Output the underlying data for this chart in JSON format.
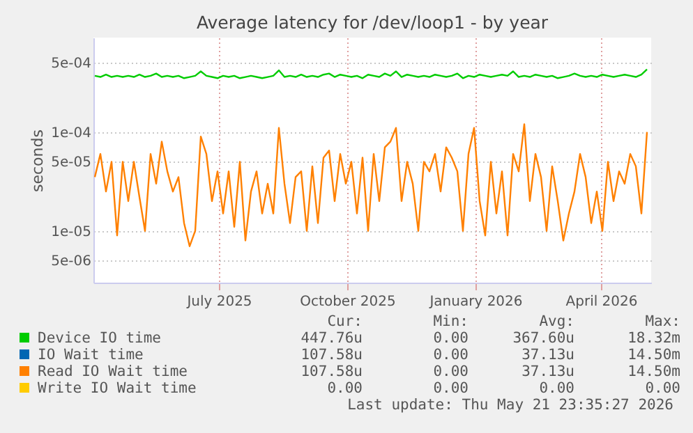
{
  "chart_data": {
    "type": "line",
    "title": "Average latency for /dev/loop1 - by year",
    "ylabel": "seconds",
    "log": "y",
    "grid": true,
    "legend": "bottom",
    "x": [
      "2025-04-18",
      "2025-04-22",
      "2025-04-26",
      "2025-04-30",
      "2025-05-04",
      "2025-05-08",
      "2025-05-12",
      "2025-05-16",
      "2025-05-20",
      "2025-05-24",
      "2025-05-28",
      "2025-06-01",
      "2025-06-05",
      "2025-06-09",
      "2025-06-13",
      "2025-06-17",
      "2025-06-21",
      "2025-06-25",
      "2025-06-29",
      "2025-07-03",
      "2025-07-07",
      "2025-07-11",
      "2025-07-15",
      "2025-07-19",
      "2025-07-23",
      "2025-07-27",
      "2025-07-31",
      "2025-08-04",
      "2025-08-08",
      "2025-08-12",
      "2025-08-16",
      "2025-08-20",
      "2025-08-24",
      "2025-08-28",
      "2025-09-01",
      "2025-09-05",
      "2025-09-09",
      "2025-09-13",
      "2025-09-17",
      "2025-09-21",
      "2025-09-25",
      "2025-09-29",
      "2025-10-03",
      "2025-10-07",
      "2025-10-11",
      "2025-10-15",
      "2025-10-19",
      "2025-10-23",
      "2025-10-27",
      "2025-10-31",
      "2025-11-04",
      "2025-11-08",
      "2025-11-12",
      "2025-11-16",
      "2025-11-20",
      "2025-11-24",
      "2025-11-28",
      "2025-12-02",
      "2025-12-06",
      "2025-12-10",
      "2025-12-14",
      "2025-12-18",
      "2025-12-22",
      "2025-12-26",
      "2025-12-30",
      "2026-01-03",
      "2026-01-07",
      "2026-01-11",
      "2026-01-15",
      "2026-01-19",
      "2026-01-23",
      "2026-01-27",
      "2026-01-31",
      "2026-02-04",
      "2026-02-08",
      "2026-02-12",
      "2026-02-16",
      "2026-02-20",
      "2026-02-24",
      "2026-02-28",
      "2026-03-04",
      "2026-03-08",
      "2026-03-12",
      "2026-03-16",
      "2026-03-20",
      "2026-03-24",
      "2026-03-28",
      "2026-04-01",
      "2026-04-05",
      "2026-04-09",
      "2026-04-13",
      "2026-04-17",
      "2026-04-21",
      "2026-04-25",
      "2026-04-29",
      "2026-05-03",
      "2026-05-07",
      "2026-05-11",
      "2026-05-15",
      "2026-05-19"
    ],
    "xlim": [
      "2025-04-17",
      "2026-05-22"
    ],
    "xticks": [
      {
        "value": "2025-07-16",
        "label": "July 2025"
      },
      {
        "value": "2025-10-16",
        "label": "October 2025"
      },
      {
        "value": "2026-01-16",
        "label": "January 2026"
      },
      {
        "value": "2026-04-16",
        "label": "April 2026"
      }
    ],
    "ylim": [
      3e-06,
      0.0009
    ],
    "yticks": [
      {
        "value": 5e-06,
        "label": "5e-06"
      },
      {
        "value": 1e-05,
        "label": "1e-05"
      },
      {
        "value": 5e-05,
        "label": "5e-05"
      },
      {
        "value": 0.0001,
        "label": "1e-04"
      },
      {
        "value": 0.0005,
        "label": "5e-04"
      }
    ],
    "series": [
      {
        "name": "Device IO time",
        "color": "#00cc00",
        "values": [
          0.00037,
          0.00036,
          0.00038,
          0.00036,
          0.00037,
          0.00036,
          0.00037,
          0.00036,
          0.00038,
          0.00036,
          0.00037,
          0.00039,
          0.00036,
          0.00037,
          0.00036,
          0.00037,
          0.00035,
          0.00036,
          0.00037,
          0.00041,
          0.00037,
          0.00036,
          0.00035,
          0.00037,
          0.00036,
          0.00037,
          0.00035,
          0.00036,
          0.00037,
          0.00036,
          0.00035,
          0.00036,
          0.00037,
          0.00042,
          0.00036,
          0.00037,
          0.00036,
          0.00038,
          0.00036,
          0.00037,
          0.00036,
          0.00038,
          0.00039,
          0.00036,
          0.00038,
          0.00037,
          0.00036,
          0.00037,
          0.00035,
          0.00038,
          0.00037,
          0.00036,
          0.00039,
          0.00037,
          0.00041,
          0.00036,
          0.00038,
          0.00037,
          0.00036,
          0.00037,
          0.00036,
          0.00038,
          0.00037,
          0.00036,
          0.00037,
          0.00039,
          0.00035,
          0.00037,
          0.00036,
          0.00038,
          0.00037,
          0.00036,
          0.00037,
          0.00038,
          0.00037,
          0.00041,
          0.00036,
          0.00037,
          0.00036,
          0.00038,
          0.00037,
          0.00036,
          0.00037,
          0.00035,
          0.00036,
          0.00037,
          0.00039,
          0.00037,
          0.00036,
          0.00037,
          0.00036,
          0.00038,
          0.00037,
          0.00036,
          0.00037,
          0.00038,
          0.00037,
          0.00036,
          0.00038,
          0.00043
        ]
      },
      {
        "name": "IO Wait time",
        "color": "#0066b3",
        "values": [
          null,
          null,
          null,
          null,
          null,
          null,
          null,
          null,
          null,
          null,
          null,
          null,
          null,
          null,
          null,
          null,
          null,
          null,
          null,
          null,
          null,
          null,
          null,
          null,
          null,
          null,
          null,
          null,
          null,
          null,
          null,
          null,
          null,
          null,
          null,
          null,
          null,
          null,
          null,
          null,
          null,
          null,
          null,
          null,
          null,
          null,
          null,
          null,
          null,
          null,
          null,
          null,
          null,
          null,
          null,
          null,
          null,
          null,
          null,
          null,
          null,
          null,
          null,
          null,
          null,
          null,
          null,
          null,
          null,
          null,
          null,
          null,
          null,
          null,
          null,
          null,
          null,
          null,
          null,
          null,
          null,
          null,
          null,
          null,
          null,
          null,
          null,
          null,
          null,
          null,
          null,
          null,
          null,
          null,
          null,
          null,
          null,
          null,
          null,
          null
        ]
      },
      {
        "name": "Read IO Wait time",
        "color": "#ff8000",
        "values": [
          3.5e-05,
          6e-05,
          2.5e-05,
          5e-05,
          9e-06,
          5e-05,
          2e-05,
          5e-05,
          2.2e-05,
          1e-05,
          6e-05,
          3e-05,
          8e-05,
          4e-05,
          2.5e-05,
          3.5e-05,
          1.2e-05,
          7e-06,
          1e-05,
          9e-05,
          6e-05,
          2e-05,
          4e-05,
          1.5e-05,
          4e-05,
          1.1e-05,
          5e-05,
          8e-06,
          2.5e-05,
          4e-05,
          1.5e-05,
          3e-05,
          1.5e-05,
          0.00011,
          3e-05,
          1.2e-05,
          3.5e-05,
          4e-05,
          1e-05,
          4.5e-05,
          1.2e-05,
          5.5e-05,
          6.5e-05,
          2e-05,
          6e-05,
          3e-05,
          5e-05,
          1.5e-05,
          5.5e-05,
          1e-05,
          6e-05,
          2e-05,
          7e-05,
          8e-05,
          0.00011,
          2e-05,
          5e-05,
          3e-05,
          1e-05,
          5e-05,
          4e-05,
          6e-05,
          2.5e-05,
          7e-05,
          5.5e-05,
          4e-05,
          1e-05,
          6e-05,
          0.00011,
          2e-05,
          9e-06,
          5e-05,
          1.5e-05,
          4e-05,
          9e-06,
          6e-05,
          4e-05,
          0.00012,
          2e-05,
          6e-05,
          3.5e-05,
          1e-05,
          4.5e-05,
          2e-05,
          8e-06,
          1.5e-05,
          2.5e-05,
          6e-05,
          3.5e-05,
          1.2e-05,
          2.5e-05,
          1e-05,
          5e-05,
          2e-05,
          4e-05,
          3e-05,
          6e-05,
          4.5e-05,
          1.5e-05,
          0.0001
        ]
      },
      {
        "name": "Write IO Wait time",
        "color": "#ffcc00",
        "values": [
          null,
          null,
          null,
          null,
          null,
          null,
          null,
          null,
          null,
          null,
          null,
          null,
          null,
          null,
          null,
          null,
          null,
          null,
          null,
          null,
          null,
          null,
          null,
          null,
          null,
          null,
          null,
          null,
          null,
          null,
          null,
          null,
          null,
          null,
          null,
          null,
          null,
          null,
          null,
          null,
          null,
          null,
          null,
          null,
          null,
          null,
          null,
          null,
          null,
          null,
          null,
          null,
          null,
          null,
          null,
          null,
          null,
          null,
          null,
          null,
          null,
          null,
          null,
          null,
          null,
          null,
          null,
          null,
          null,
          null,
          null,
          null,
          null,
          null,
          null,
          null,
          null,
          null,
          null,
          null,
          null,
          null,
          null,
          null,
          null,
          null,
          null,
          null,
          null,
          null,
          null,
          null,
          null,
          null,
          null,
          null,
          null,
          null,
          null,
          null
        ]
      }
    ],
    "annotations": [
      "Cur:",
      "Min:",
      "Avg:",
      "Max:",
      "447.76u",
      "0.00",
      "367.60u",
      "18.32m",
      "107.58u",
      "0.00",
      "37.13u",
      "14.50m",
      "107.58u",
      "0.00",
      "37.13u",
      "14.50m",
      "0.00",
      "0.00",
      "0.00",
      "0.00",
      "Last update: Thu May 21 23:35:27 2026"
    ]
  }
}
